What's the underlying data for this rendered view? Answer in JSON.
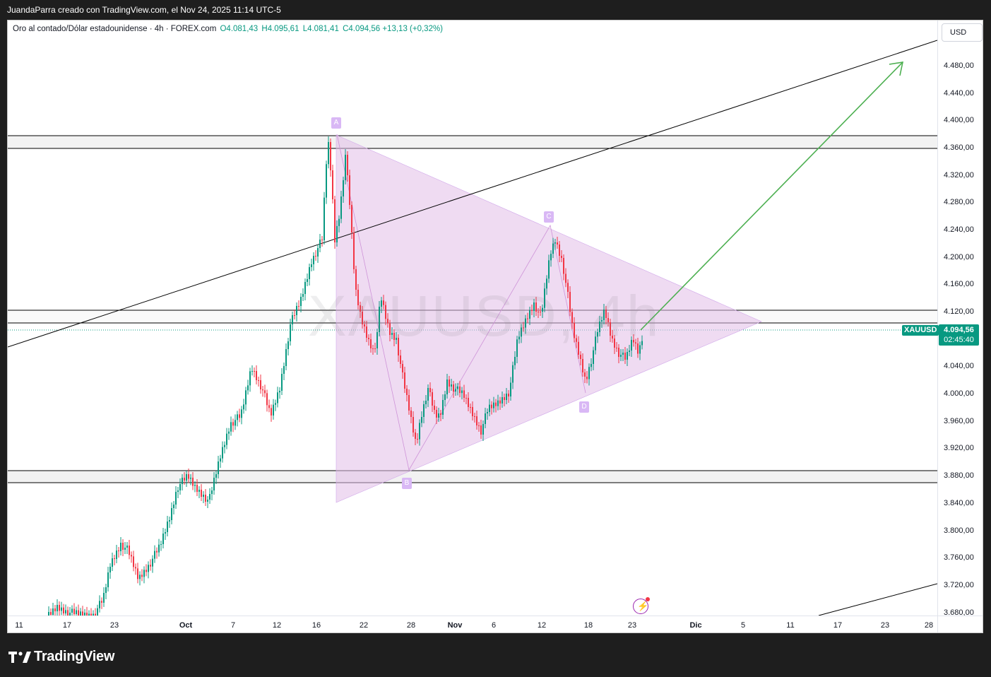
{
  "header": {
    "author_line": "JuandaParra creado con TradingView.com, el Nov 24, 2025 11:14 UTC-5"
  },
  "legend": {
    "symbol_description": "Oro al contado/Dólar estadounidense · 4h · FOREX.com",
    "open": "O4.081,43",
    "high": "H4.095,61",
    "low": "L4.081,41",
    "close": "C4.094,56",
    "change": "+13,13 (+0,32%)"
  },
  "currency_button": {
    "label": "USD"
  },
  "watermark": {
    "text": "XAUUSD, 4h"
  },
  "price_axis": {
    "labels": [
      "4.480,00",
      "4.440,00",
      "4.400,00",
      "4.360,00",
      "4.320,00",
      "4.280,00",
      "4.240,00",
      "4.200,00",
      "4.160,00",
      "4.120,00",
      "4.040,00",
      "4.000,00",
      "3.960,00",
      "3.920,00",
      "3.880,00",
      "3.840,00",
      "3.800,00",
      "3.760,00",
      "3.720,00",
      "3.680,00"
    ]
  },
  "time_axis": {
    "labels": [
      {
        "text": "11",
        "bold": false
      },
      {
        "text": "17",
        "bold": false
      },
      {
        "text": "23",
        "bold": false
      },
      {
        "text": "Oct",
        "bold": true
      },
      {
        "text": "7",
        "bold": false
      },
      {
        "text": "12",
        "bold": false
      },
      {
        "text": "16",
        "bold": false
      },
      {
        "text": "22",
        "bold": false
      },
      {
        "text": "28",
        "bold": false
      },
      {
        "text": "Nov",
        "bold": true
      },
      {
        "text": "6",
        "bold": false
      },
      {
        "text": "12",
        "bold": false
      },
      {
        "text": "18",
        "bold": false
      },
      {
        "text": "23",
        "bold": false
      },
      {
        "text": "Dic",
        "bold": true
      },
      {
        "text": "5",
        "bold": false
      },
      {
        "text": "11",
        "bold": false
      },
      {
        "text": "17",
        "bold": false
      },
      {
        "text": "23",
        "bold": false
      },
      {
        "text": "28",
        "bold": false
      }
    ]
  },
  "last_price": {
    "symbol": "XAUUSD",
    "price": "4.094,56",
    "countdown": "02:45:40"
  },
  "pattern_points": [
    "A",
    "B",
    "C",
    "D"
  ],
  "colors": {
    "bull": "#089981",
    "bear": "#f23645",
    "pattern_fill": "#e1bee7",
    "arrow": "#4caf50",
    "brand_bg": "#1e1e1e"
  },
  "footer": {
    "brand": "TradingView"
  },
  "icons": {
    "flash": "lightning-icon",
    "logo": "tradingview-logo-icon"
  }
}
